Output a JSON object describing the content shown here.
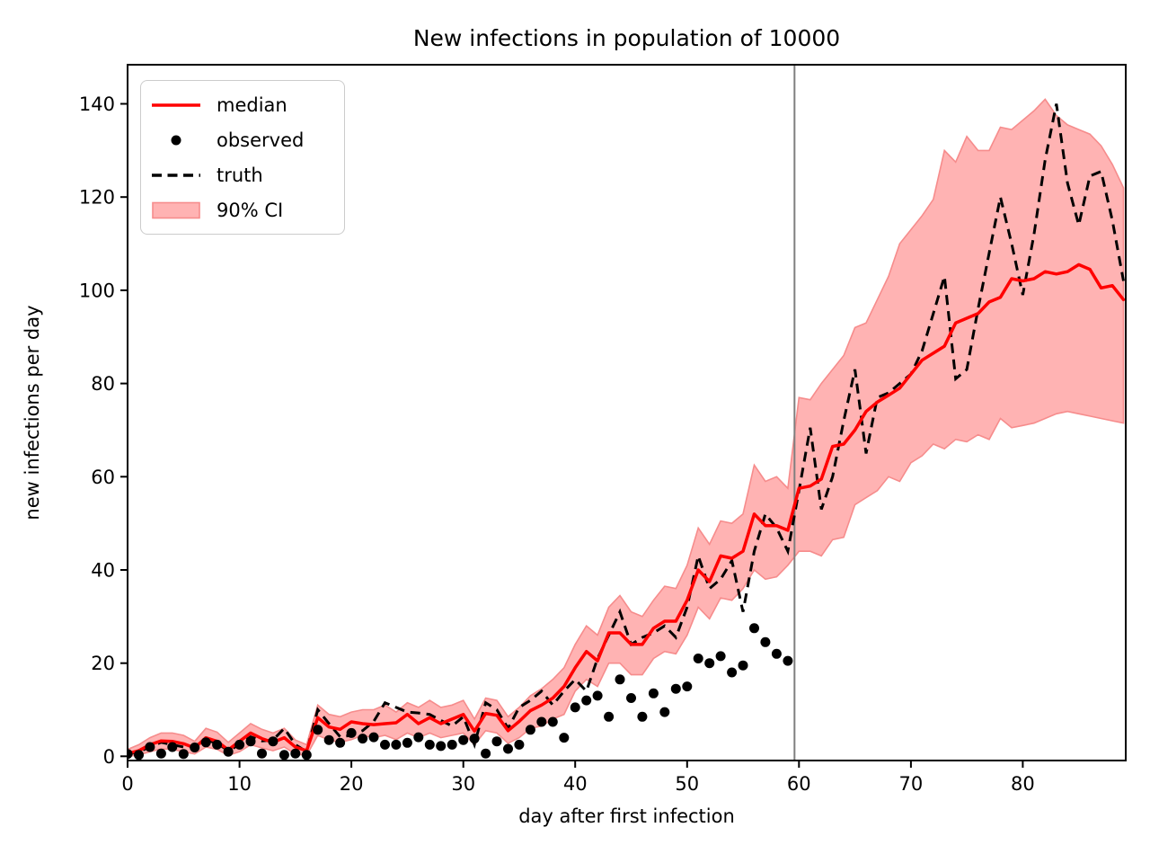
{
  "colors": {
    "median": "#ff0000",
    "truth": "#000000",
    "observed": "#000000",
    "ci_fill": "#ffb3b3",
    "ci_edge": "#f68c8c",
    "vline": "#7f7f7f",
    "spine": "#000000",
    "legend_border": "#cccccc",
    "text": "#000000"
  },
  "legend": {
    "items": [
      {
        "label": "median"
      },
      {
        "label": "observed"
      },
      {
        "label": "truth"
      },
      {
        "label": "90% CI"
      }
    ]
  },
  "chart_data": {
    "type": "line",
    "title": "New infections in population of 10000",
    "xlabel": "day after first infection",
    "ylabel": "new infections per day",
    "xlim": [
      0,
      89.2
    ],
    "ylim": [
      -0.9,
      148.4
    ],
    "xticks": [
      0,
      10,
      20,
      30,
      40,
      50,
      60,
      70,
      80
    ],
    "yticks": [
      0,
      20,
      40,
      60,
      80,
      100,
      120,
      140
    ],
    "grid": false,
    "legend_position": "upper left",
    "vline_x": 59.6,
    "x_is_index": true,
    "x_description": "day 0 through day 89; series value index = day",
    "series": [
      {
        "name": "median",
        "type": "line",
        "style": "solid red",
        "values": [
          0.6,
          1.2,
          2.5,
          3.3,
          3.2,
          2.7,
          1.8,
          4.0,
          3.2,
          1.4,
          3.2,
          5.0,
          3.8,
          3.0,
          4.0,
          2.0,
          1.2,
          8.3,
          6.3,
          5.8,
          7.4,
          7.0,
          6.8,
          7.0,
          7.2,
          9.0,
          7.0,
          8.3,
          7.0,
          8.0,
          9.0,
          5.4,
          9.2,
          8.8,
          5.5,
          7.5,
          9.8,
          11.0,
          12.5,
          15.0,
          19.0,
          22.5,
          20.5,
          26.5,
          26.5,
          24.0,
          24.0,
          27.5,
          29.0,
          29.0,
          33.5,
          40.0,
          37.5,
          43.0,
          42.5,
          44.0,
          52.0,
          49.5,
          49.5,
          48.5,
          57.5,
          58.0,
          59.5,
          66.5,
          67.0,
          70.0,
          74.0,
          76.0,
          77.5,
          79.0,
          82.0,
          85.0,
          86.5,
          88.0,
          93.0,
          94.0,
          95.0,
          97.5,
          98.5,
          102.5,
          102.0,
          102.5,
          104.0,
          103.5,
          104.0,
          105.5,
          104.5,
          100.5,
          101.0,
          98.0
        ]
      },
      {
        "name": "truth",
        "type": "line",
        "style": "dashed black",
        "values": [
          0.4,
          1.0,
          2.0,
          3.0,
          2.5,
          2.0,
          2.2,
          3.5,
          2.8,
          1.2,
          2.5,
          4.2,
          3.3,
          3.5,
          6.0,
          2.5,
          1.0,
          10.0,
          7.0,
          4.2,
          4.5,
          5.5,
          7.5,
          11.5,
          10.5,
          9.5,
          9.3,
          9.0,
          7.7,
          6.5,
          8.5,
          2.5,
          11.5,
          10.0,
          6.0,
          10.5,
          12.0,
          14.0,
          11.0,
          14.0,
          16.5,
          14.0,
          21.0,
          26.0,
          31.0,
          24.0,
          25.5,
          26.5,
          28.0,
          25.5,
          32.0,
          43.0,
          36.0,
          38.0,
          42.0,
          31.0,
          44.0,
          52.0,
          49.0,
          44.0,
          57.0,
          70.5,
          53.0,
          60.0,
          72.0,
          83.0,
          65.0,
          77.0,
          78.0,
          80.0,
          82.0,
          87.0,
          95.0,
          103.0,
          81.0,
          83.0,
          96.0,
          108.0,
          120.0,
          110.0,
          99.0,
          112.0,
          128.0,
          140.0,
          123.0,
          114.0,
          124.5,
          125.5,
          115.0,
          102.0
        ]
      },
      {
        "name": "observed",
        "type": "scatter",
        "style": "black dots, days 0-59 only",
        "values": [
          0.5,
          0.3,
          2.0,
          0.6,
          2.0,
          0.5,
          1.9,
          3.0,
          2.5,
          1.0,
          2.5,
          3.2,
          0.6,
          3.2,
          0.3,
          0.6,
          0.3,
          5.7,
          3.5,
          2.9,
          5.0,
          3.8,
          4.1,
          2.5,
          2.5,
          2.9,
          4.1,
          2.5,
          2.2,
          2.5,
          3.5,
          3.8,
          0.6,
          3.2,
          1.6,
          2.5,
          5.7,
          7.4,
          7.4,
          4.0,
          10.5,
          12.0,
          13.0,
          8.5,
          16.5,
          12.5,
          8.5,
          13.5,
          9.5,
          14.5,
          15.0,
          21.0,
          20.0,
          21.5,
          18.0,
          19.5,
          27.5,
          24.5,
          22.0,
          20.5
        ]
      },
      {
        "name": "90% CI lower",
        "type": "band-lower",
        "values": [
          0.0,
          0.3,
          1.0,
          1.6,
          1.5,
          1.0,
          0.5,
          2.0,
          1.5,
          0.2,
          1.0,
          2.5,
          1.8,
          1.2,
          2.0,
          0.5,
          0.2,
          4.5,
          3.5,
          3.0,
          3.6,
          4.5,
          4.0,
          4.5,
          3.6,
          5.0,
          4.0,
          5.0,
          4.0,
          4.5,
          5.0,
          2.5,
          5.5,
          5.0,
          2.8,
          4.0,
          6.0,
          6.5,
          8.0,
          9.0,
          14.0,
          16.5,
          15.0,
          20.0,
          20.0,
          17.5,
          17.5,
          21.0,
          22.5,
          22.0,
          26.0,
          32.0,
          29.5,
          34.0,
          33.5,
          36.0,
          40.0,
          38.0,
          38.5,
          41.0,
          44.0,
          44.0,
          43.0,
          46.5,
          47.0,
          54.0,
          55.5,
          57.0,
          60.0,
          59.0,
          63.0,
          64.5,
          67.0,
          66.0,
          68.0,
          67.5,
          69.0,
          68.0,
          72.5,
          70.5,
          71.0,
          71.5,
          72.5,
          73.5,
          74.0,
          73.5,
          73.0,
          72.5,
          72.0,
          71.5
        ]
      },
      {
        "name": "90% CI upper",
        "type": "band-upper",
        "values": [
          1.5,
          2.5,
          4.0,
          5.0,
          5.0,
          4.5,
          3.2,
          6.0,
          5.2,
          3.0,
          5.0,
          7.0,
          5.8,
          5.0,
          6.0,
          3.5,
          2.5,
          11.0,
          9.0,
          8.5,
          9.5,
          10.0,
          10.0,
          11.0,
          9.5,
          11.5,
          10.5,
          12.0,
          10.5,
          11.0,
          12.0,
          8.0,
          12.5,
          12.0,
          8.5,
          10.5,
          13.0,
          14.5,
          16.5,
          19.0,
          24.0,
          28.0,
          26.0,
          32.0,
          34.5,
          31.0,
          30.0,
          33.5,
          36.5,
          36.0,
          41.0,
          49.0,
          45.5,
          50.5,
          50.0,
          52.0,
          62.5,
          59.0,
          60.0,
          57.5,
          77.0,
          76.5,
          80.0,
          83.0,
          86.0,
          92.0,
          93.0,
          98.0,
          103.0,
          110.0,
          113.0,
          116.0,
          119.5,
          130.0,
          127.5,
          133.0,
          130.0,
          130.0,
          135.0,
          134.5,
          136.5,
          138.5,
          141.0,
          137.5,
          135.5,
          134.5,
          133.5,
          131.0,
          127.0,
          122.0
        ]
      }
    ]
  }
}
